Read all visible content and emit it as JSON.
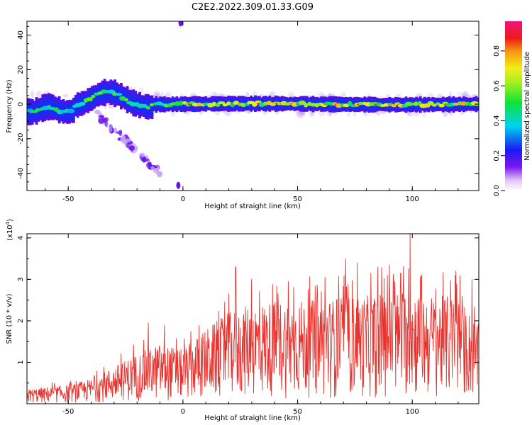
{
  "title": "C2E2.2022.309.01.33.G09",
  "chart_data": [
    {
      "type": "heatmap",
      "xlabel": "Height of straight line (km)",
      "ylabel": "Frequency (Hz)",
      "xlim": [
        -68,
        129
      ],
      "ylim": [
        -50,
        48
      ],
      "xticks": [
        -50,
        0,
        50,
        100
      ],
      "yticks": [
        -40,
        -20,
        0,
        20,
        40
      ],
      "colorbar": {
        "label": "Normalized spectral amplitude",
        "range": [
          0.0,
          0.97
        ],
        "ticks": [
          0.0,
          0.2,
          0.4,
          0.6,
          0.8
        ],
        "tick_labels": [
          "0.0",
          "0.2",
          "0.4",
          "0.6",
          "0.8"
        ],
        "colormap": "rainbow (white-violet-blue-cyan-green-yellow-orange-red-magenta)"
      },
      "features": [
        {
          "name": "main-ridge",
          "x": [
            -68,
            129
          ],
          "frequency": 0,
          "amplitude": [
            0.25,
            0.85
          ]
        },
        {
          "name": "bump",
          "x": [
            -45,
            -15
          ],
          "frequency_peak": 7
        },
        {
          "name": "descending-branch",
          "x": [
            -38,
            -10
          ],
          "frequency": [
            -5,
            -40
          ]
        },
        {
          "name": "edge-blob-top",
          "x": -1,
          "frequency": 47
        },
        {
          "name": "edge-blob-bottom",
          "x": -2,
          "frequency": -47
        }
      ]
    },
    {
      "type": "line",
      "xlabel": "Height of straight line (km)",
      "ylabel": "SNR (10 * v/v)",
      "y_multiplier_label": "(x10",
      "y_multiplier_exp": "4",
      "y_multiplier_close": ")",
      "xlim": [
        -68,
        129
      ],
      "ylim": [
        0,
        4.1
      ],
      "xticks": [
        -50,
        0,
        50,
        100
      ],
      "yticks": [
        1,
        2,
        3,
        4
      ],
      "color": "#e8332e",
      "envelope": {
        "x": [
          -68,
          -50,
          -40,
          -30,
          -20,
          -10,
          0,
          10,
          20,
          30,
          40,
          50,
          60,
          70,
          80,
          90,
          100,
          110,
          120,
          129
        ],
        "y": [
          0.35,
          0.45,
          0.6,
          0.9,
          1.2,
          1.45,
          1.3,
          1.8,
          2.2,
          2.4,
          2.5,
          2.5,
          2.5,
          2.6,
          2.6,
          2.7,
          2.8,
          2.6,
          2.6,
          1.9
        ]
      },
      "peaks": [
        {
          "x": -15,
          "y": 1.95
        },
        {
          "x": -8,
          "y": 1.9
        },
        {
          "x": 20,
          "y": 2.65
        },
        {
          "x": 23,
          "y": 3.3
        },
        {
          "x": 30,
          "y": 3.0
        },
        {
          "x": 46,
          "y": 2.95
        },
        {
          "x": 62,
          "y": 3.05
        },
        {
          "x": 67,
          "y": 2.5
        },
        {
          "x": 71,
          "y": 3.5
        },
        {
          "x": 76,
          "y": 3.4
        },
        {
          "x": 82,
          "y": 3.15
        },
        {
          "x": 90,
          "y": 3.35
        },
        {
          "x": 95,
          "y": 3.15
        },
        {
          "x": 99,
          "y": 4.1
        },
        {
          "x": 104,
          "y": 3.1
        },
        {
          "x": 119,
          "y": 3.2
        },
        {
          "x": 126,
          "y": 3.0
        }
      ]
    }
  ]
}
